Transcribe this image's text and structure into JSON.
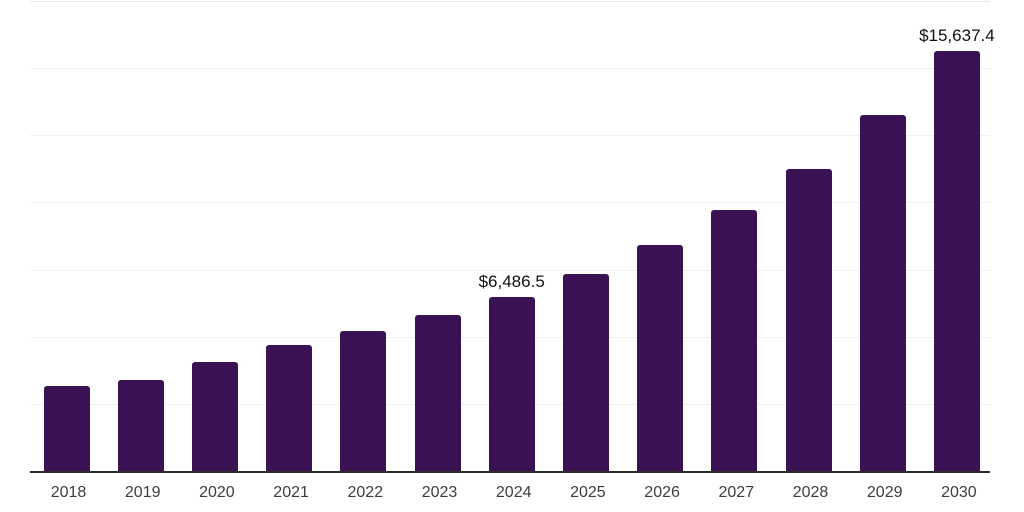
{
  "chart": {
    "background_color": "#ffffff",
    "bar_color": "#3a1253",
    "gridline_color": "#f0f0f0",
    "top_gridline_color": "#e8e8e8",
    "axis_line_color": "#2b2b2b",
    "tick_label_color": "#3d3d3d",
    "value_label_color": "#111111"
  },
  "chart_data": {
    "type": "bar",
    "title": "",
    "xlabel": "",
    "ylabel": "",
    "categories": [
      "2018",
      "2019",
      "2020",
      "2021",
      "2022",
      "2023",
      "2024",
      "2025",
      "2026",
      "2027",
      "2028",
      "2029",
      "2030"
    ],
    "values": [
      3150,
      3400,
      4070,
      4690,
      5200,
      5800,
      6486.5,
      7350,
      8420,
      9700,
      11240,
      13250,
      15637.4
    ],
    "labeled_points": [
      {
        "category": "2024",
        "label": "$6,486.5"
      },
      {
        "category": "2030",
        "label": "$15,637.4"
      }
    ],
    "ylim": [
      0,
      17500
    ],
    "gridline_step": 2500,
    "grid": "horizontal",
    "legend_position": "none",
    "y_axis_tick_labels_visible": false
  }
}
